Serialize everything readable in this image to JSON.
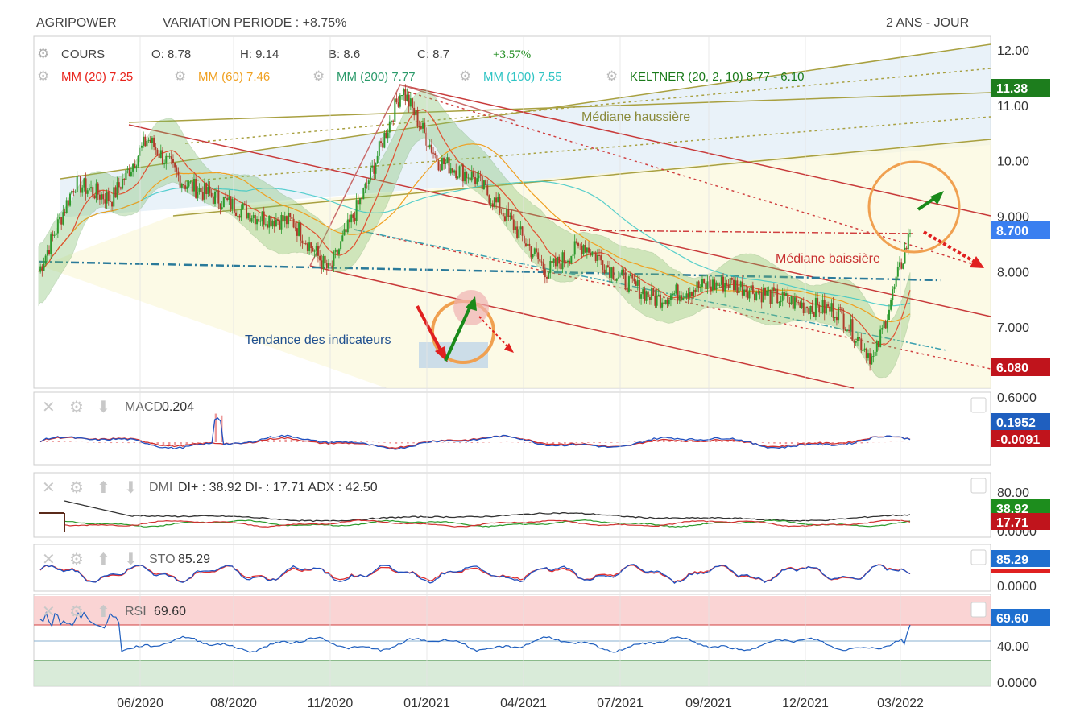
{
  "header": {
    "name": "AGRIPOWER",
    "variation": "VARIATION PERIODE : +8.75%",
    "period": "2 ANS - JOUR"
  },
  "ohlc": {
    "cours_label": "COURS",
    "o": "O: 8.78",
    "h": "H: 9.14",
    "b": "B: 8.6",
    "c": "C: 8.7",
    "change": "+3.57%"
  },
  "indicators": [
    {
      "label": "MM (20)",
      "value": "7.25",
      "color": "#e8231b"
    },
    {
      "label": "MM (60)",
      "value": "7.46",
      "color": "#f0a020"
    },
    {
      "label": "MM (200)",
      "value": "7.77",
      "color": "#2a9a6a"
    },
    {
      "label": "MM (100)",
      "value": "7.55",
      "color": "#2fc4c4"
    },
    {
      "label": "KELTNER (20, 2, 10)",
      "value": "8.77 - 6.10",
      "color": "#1a7a1a"
    }
  ],
  "annotations": {
    "median_up": "Médiane haussière",
    "median_down": "Médiane baissière",
    "trend": "Tendance des indicateurs"
  },
  "price_axis": {
    "ticks": [
      "12.00",
      "11.00",
      "10.00",
      "9.000",
      "8.000",
      "7.000"
    ],
    "badges": [
      {
        "text": "11.38",
        "color": "#1d7d1d"
      },
      {
        "text": "8.700",
        "color": "#3a7ff0"
      },
      {
        "text": "6.080",
        "color": "#c0141c"
      }
    ]
  },
  "panels": {
    "macd": {
      "label": "MACD",
      "value": "0.204",
      "ticks": [
        "0.6000"
      ],
      "badges": [
        {
          "text": "0.1952",
          "color": "#1f5fbf"
        },
        {
          "text": "-0.0091",
          "color": "#c0141c"
        }
      ]
    },
    "dmi": {
      "label": "DMI",
      "value": "DI+ : 38.92 DI- : 17.71 ADX : 42.50",
      "ticks": [
        "80.00",
        "0.0000"
      ],
      "badges": [
        {
          "text": "38.92",
          "color": "#1d8d1d"
        },
        {
          "text": "17.71",
          "color": "#c0141c"
        }
      ]
    },
    "sto": {
      "label": "STO",
      "value": "85.29",
      "ticks": [
        "0.0000"
      ],
      "badges": [
        {
          "text": "85.29",
          "color": "#1f6fcf"
        }
      ]
    },
    "rsi": {
      "label": "RSI",
      "value": "69.60",
      "ticks": [
        "40.00",
        "0.0000"
      ],
      "badges": [
        {
          "text": "69.60",
          "color": "#1f6fcf"
        }
      ]
    }
  },
  "chart_data": {
    "type": "line",
    "x_ticks": [
      "06/2020",
      "08/2020",
      "11/2020",
      "01/2021",
      "04/2021",
      "07/2021",
      "09/2021",
      "12/2021",
      "03/2022"
    ],
    "price_series": [
      {
        "x": "03/2020",
        "y": 8.0
      },
      {
        "x": "04/2020",
        "y": 9.6
      },
      {
        "x": "05/2020",
        "y": 9.3
      },
      {
        "x": "06/2020",
        "y": 10.4
      },
      {
        "x": "07/2020",
        "y": 9.6
      },
      {
        "x": "08/2020",
        "y": 9.3
      },
      {
        "x": "09/2020",
        "y": 9.0
      },
      {
        "x": "10/2020",
        "y": 8.9
      },
      {
        "x": "11/2020",
        "y": 8.0
      },
      {
        "x": "12/2020",
        "y": 9.5
      },
      {
        "x": "01/2021",
        "y": 11.3
      },
      {
        "x": "02/2021",
        "y": 10.0
      },
      {
        "x": "03/2021",
        "y": 9.7
      },
      {
        "x": "04/2021",
        "y": 8.9
      },
      {
        "x": "05/2021",
        "y": 8.0
      },
      {
        "x": "06/2021",
        "y": 8.5
      },
      {
        "x": "07/2021",
        "y": 7.9
      },
      {
        "x": "08/2021",
        "y": 7.5
      },
      {
        "x": "09/2021",
        "y": 7.7
      },
      {
        "x": "10/2021",
        "y": 7.8
      },
      {
        "x": "11/2021",
        "y": 7.6
      },
      {
        "x": "12/2021",
        "y": 7.4
      },
      {
        "x": "01/2022",
        "y": 7.3
      },
      {
        "x": "02/2022",
        "y": 6.4
      },
      {
        "x": "03/2022",
        "y": 8.7
      }
    ],
    "ylim": [
      5.9,
      12.1
    ]
  }
}
